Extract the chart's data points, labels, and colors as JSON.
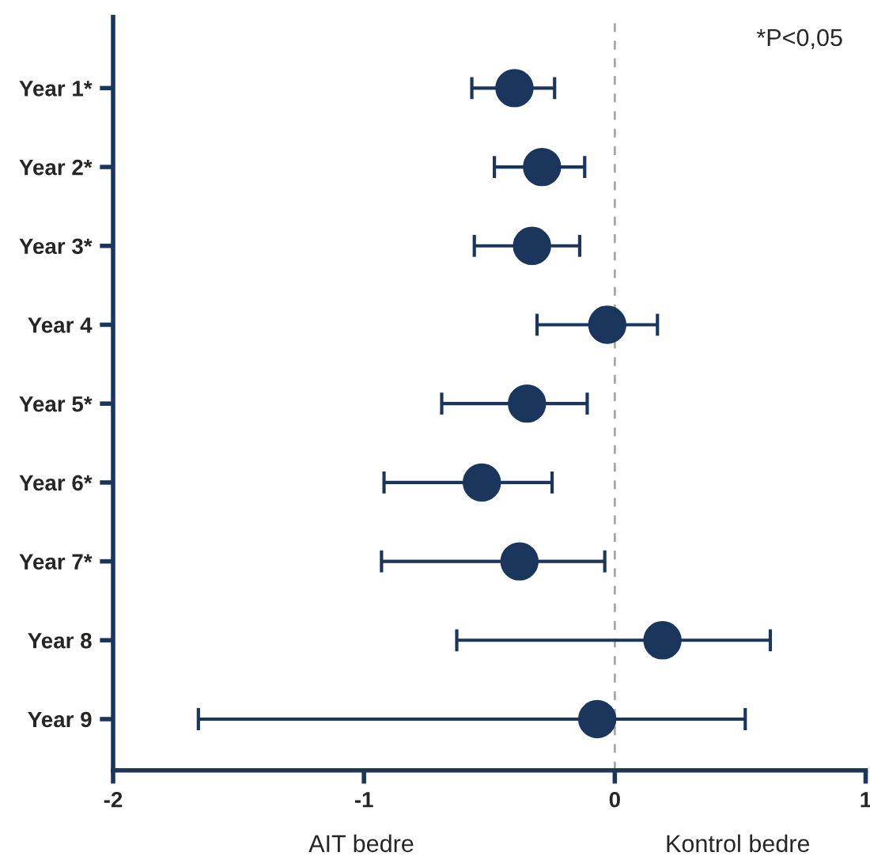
{
  "chart_data": {
    "type": "scatter",
    "orientation": "horizontal",
    "categories": [
      "Year 1*",
      "Year 2*",
      "Year 3*",
      "Year 4",
      "Year 5*",
      "Year 6*",
      "Year 7*",
      "Year 8",
      "Year 9"
    ],
    "values": [
      -0.4,
      -0.29,
      -0.33,
      -0.03,
      -0.35,
      -0.53,
      -0.38,
      0.19,
      -0.07
    ],
    "errors": [
      [
        -0.57,
        -0.24
      ],
      [
        -0.48,
        -0.12
      ],
      [
        -0.56,
        -0.14
      ],
      [
        -0.31,
        0.17
      ],
      [
        -0.69,
        -0.11
      ],
      [
        -0.92,
        -0.25
      ],
      [
        -0.93,
        -0.04
      ],
      [
        -0.63,
        0.62
      ],
      [
        -1.66,
        0.52
      ]
    ],
    "color": "#1b365d",
    "marker": "circle",
    "xlim": [
      -2,
      1
    ],
    "xticks": [
      -2,
      -1,
      0,
      1
    ],
    "grid": false,
    "ref_lines": [
      {
        "axis": "x",
        "value": 0,
        "color": "#a6a6a6",
        "line_style": "dashed"
      }
    ],
    "annotations": [
      "*P<0,05",
      "AIT bedre",
      "Kontrol bedre"
    ]
  }
}
